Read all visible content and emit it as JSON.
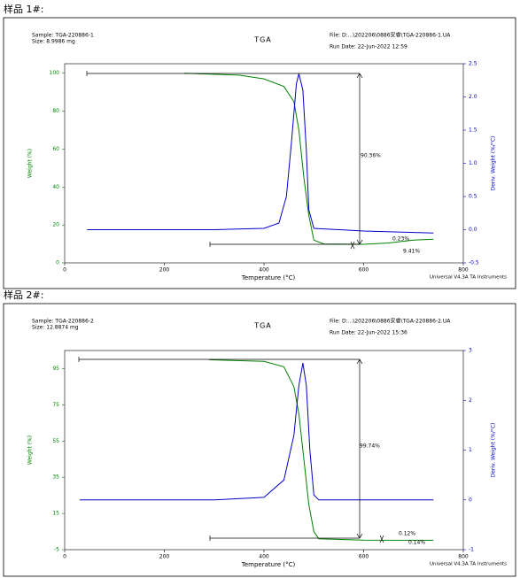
{
  "chart_data": [
    {
      "type": "line",
      "section_label": "样品 1#:",
      "title": "TGA",
      "sample": "Sample: TGA-220886-1",
      "size": "Size:  8.9986 mg",
      "file": "File: D:...\\202206\\0886安睿\\TGA-220886-1.UA",
      "run_date": "Run Date: 22-Jun-2022 12:59",
      "xlabel": "Temperature (°C)",
      "ylabel": "Weight (%)",
      "y2label": "Deriv. Weight (%/°C)",
      "instrument": "Universal V4.3A TA Instruments",
      "annotations": [
        "90.36%",
        "0.23%",
        "9.41%"
      ],
      "xlim": [
        0,
        800
      ],
      "xticks": [
        0,
        200,
        400,
        600,
        800
      ],
      "ylim": [
        0,
        105
      ],
      "yticks": [
        0,
        20,
        40,
        60,
        80,
        100
      ],
      "y2lim": [
        -0.5,
        2.5
      ],
      "y2ticks": [
        {
          "value": -0.5,
          "label": "-0.5"
        },
        {
          "value": 0,
          "label": "0.0"
        },
        0.5,
        {
          "value": 1,
          "label": "1.0"
        },
        1.5,
        {
          "value": 2,
          "label": "2.0"
        },
        2.5
      ],
      "series": [
        {
          "name": "Weight",
          "color": "#008000",
          "x": [
            240,
            350,
            400,
            440,
            460,
            470,
            480,
            490,
            500,
            520,
            600,
            650,
            700,
            740
          ],
          "values": [
            100,
            99,
            97,
            93,
            85,
            70,
            45,
            25,
            12,
            10,
            9.8,
            10.5,
            12,
            12.5
          ]
        },
        {
          "name": "Deriv. Weight",
          "color": "#0000cc",
          "axis": "y2",
          "x": [
            45,
            300,
            400,
            430,
            445,
            455,
            465,
            470,
            478,
            485,
            490,
            500,
            600,
            740
          ],
          "values": [
            0,
            0,
            0.02,
            0.1,
            0.5,
            1.3,
            2.2,
            2.35,
            2.1,
            1.2,
            0.3,
            0.02,
            -0.02,
            -0.05
          ]
        }
      ]
    },
    {
      "type": "line",
      "section_label": "样品 2#:",
      "title": "TGA",
      "sample": "Sample: TGA-220886-2",
      "size": "Size:  12.8874 mg",
      "file": "File: D:...\\202206\\0886安睿\\TGA-220886-2.UA",
      "run_date": "Run Date: 22-Jun-2022 15:36",
      "xlabel": "Temperature (°C)",
      "ylabel": "Weight (%)",
      "y2label": "Deriv. Weight (%/°C)",
      "instrument": "Universal V4.3A TA Instruments",
      "annotations": [
        "99.74%",
        "0.12%",
        "0.14%"
      ],
      "xlim": [
        0,
        800
      ],
      "xticks": [
        0,
        200,
        400,
        600,
        800
      ],
      "ylim": [
        -5,
        105
      ],
      "yticks": [
        -5,
        15,
        35,
        55,
        75,
        95
      ],
      "y2lim": [
        -1,
        3
      ],
      "y2ticks": [
        -1,
        0,
        1,
        2,
        3
      ],
      "series": [
        {
          "name": "Weight",
          "color": "#008000",
          "x": [
            290,
            400,
            440,
            460,
            470,
            480,
            490,
            500,
            510,
            600,
            740
          ],
          "values": [
            99.9,
            99,
            96,
            85,
            70,
            45,
            20,
            5,
            1,
            0.3,
            0.2
          ]
        },
        {
          "name": "Deriv. Weight",
          "color": "#0000cc",
          "axis": "y2",
          "x": [
            30,
            300,
            400,
            440,
            460,
            470,
            478,
            485,
            492,
            500,
            510,
            740
          ],
          "values": [
            0,
            0,
            0.05,
            0.4,
            1.3,
            2.3,
            2.75,
            2.3,
            1.0,
            0.1,
            0,
            0
          ]
        }
      ]
    }
  ]
}
